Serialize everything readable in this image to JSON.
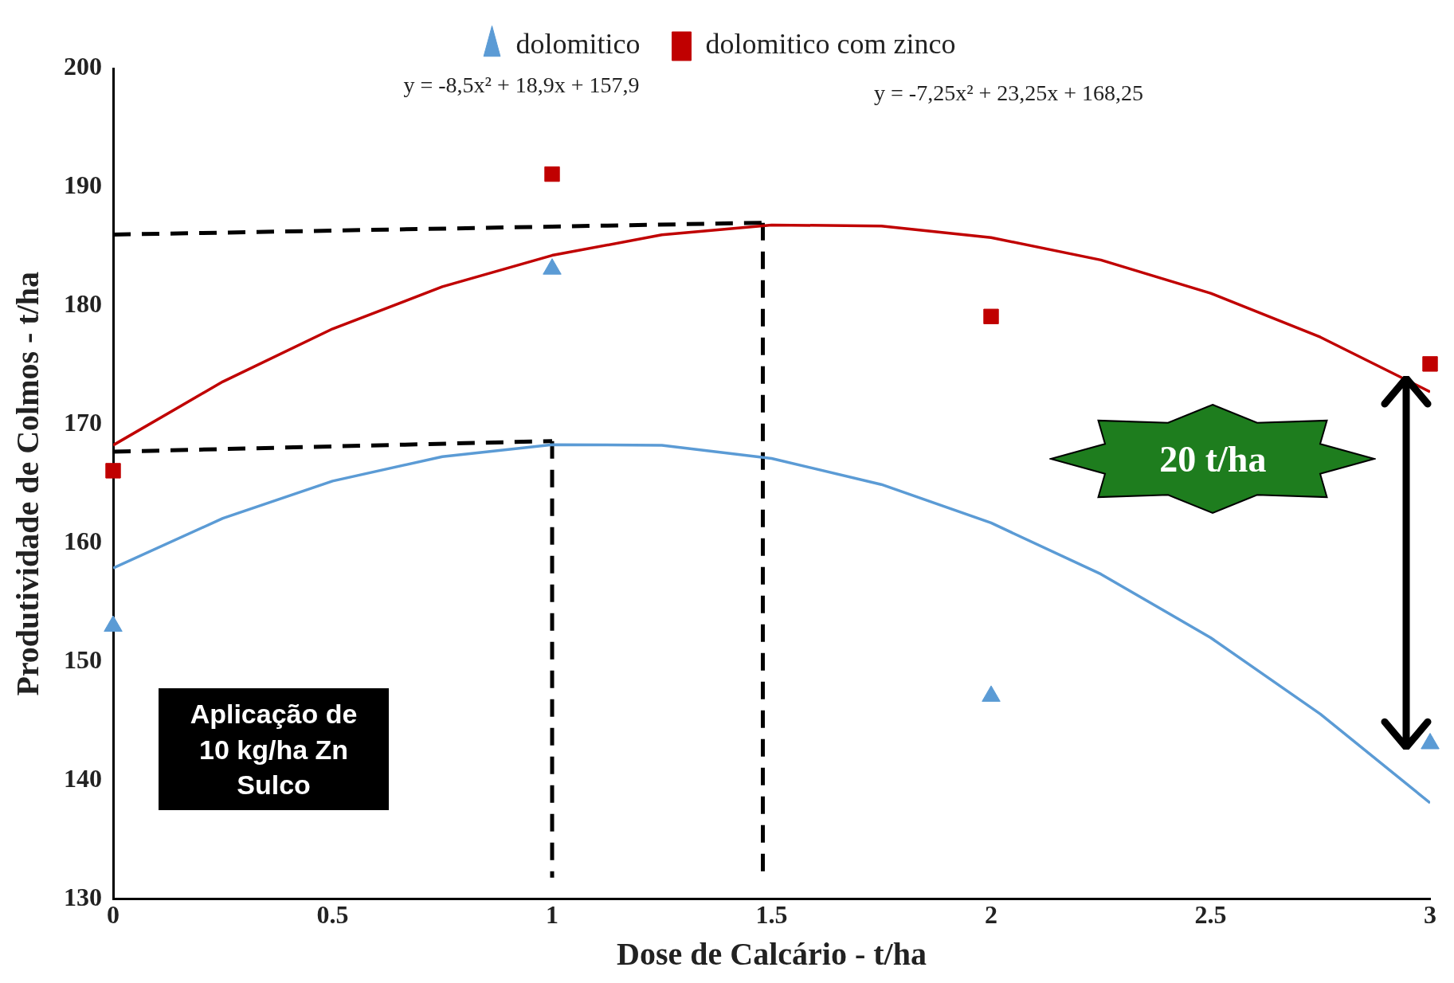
{
  "chart_data": {
    "type": "scatter",
    "xlabel": "Dose de Calcário - t/ha",
    "ylabel": "Produtividade de Colmos - t/ha",
    "xlim": [
      0,
      3
    ],
    "xticks": [
      0,
      0.5,
      1,
      1.5,
      2,
      2.5,
      3
    ],
    "ylim": [
      130,
      200
    ],
    "yticks": [
      130,
      140,
      150,
      160,
      170,
      180,
      190,
      200
    ],
    "grid": false,
    "legend": "top",
    "series": [
      {
        "name": "dolomitico",
        "color": "#5b9bd5",
        "marker": "triangle",
        "x": [
          0,
          1,
          2,
          3
        ],
        "values": [
          153,
          183.1,
          147.1,
          143.1
        ]
      },
      {
        "name": "dolomitico com zinco",
        "color": "#c00000",
        "marker": "square",
        "x": [
          0,
          1,
          2,
          3
        ],
        "values": [
          166.1,
          191.1,
          179.1,
          175.1
        ]
      },
      {
        "type": "line",
        "color": "#5b9bd5",
        "marker": "none",
        "line_style": "solid",
        "x": [
          0,
          0.25,
          0.5,
          0.75,
          1,
          1.25,
          1.5,
          1.75,
          2,
          2.25,
          2.5,
          2.75,
          3
        ],
        "values": [
          157.9,
          162.09,
          165.23,
          167.29,
          168.3,
          168.24,
          167.13,
          164.94,
          161.7,
          157.39,
          152.03,
          145.59,
          138.1
        ]
      },
      {
        "type": "line",
        "color": "#c00000",
        "marker": "none",
        "line_style": "solid",
        "x": [
          0,
          0.25,
          0.5,
          0.75,
          1,
          1.25,
          1.5,
          1.75,
          2,
          2.25,
          2.5,
          2.75,
          3
        ],
        "values": [
          168.25,
          173.61,
          178.06,
          181.61,
          184.25,
          185.98,
          186.81,
          186.73,
          185.75,
          183.86,
          181.06,
          177.36,
          172.75
        ]
      },
      {
        "type": "line",
        "color": "#000000",
        "marker": "none",
        "line_style": "dashed",
        "x": [
          0,
          1.48
        ],
        "values": [
          186,
          187
        ]
      },
      {
        "type": "line",
        "color": "#000000",
        "marker": "none",
        "line_style": "dashed",
        "x": [
          1.48,
          1.48
        ],
        "values": [
          187,
          132.2
        ]
      },
      {
        "type": "line",
        "color": "#000000",
        "marker": "none",
        "line_style": "dashed",
        "x": [
          0,
          1
        ],
        "values": [
          167.7,
          168.6
        ]
      },
      {
        "type": "line",
        "color": "#000000",
        "marker": "none",
        "line_style": "dashed",
        "x": [
          1,
          1
        ],
        "values": [
          168.6,
          131.8
        ]
      }
    ],
    "annotations": [
      "y = -8,5x² + 18,9x + 157,9",
      "y = -7,25x² + 23,25x + 168,25",
      "20 t/ha",
      "Aplicação de\n10 kg/ha Zn\nSulco"
    ]
  }
}
